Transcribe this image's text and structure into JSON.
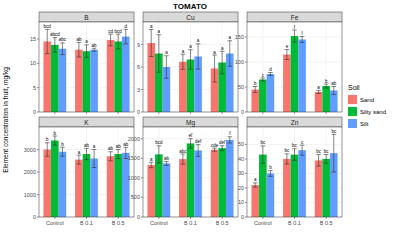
{
  "title": "TOMATO",
  "y_label": "Element concentration in fruit, mg/kg",
  "legend_title": "Soil",
  "soils": [
    {
      "name": "Sand",
      "color": "#F8766D"
    },
    {
      "name": "Silty sand",
      "color": "#00BA38"
    },
    {
      "name": "Silt",
      "color": "#619CFF"
    }
  ],
  "chart_data": [
    {
      "type": "bar",
      "title": "B",
      "categories": [
        "Control",
        "B 0.1",
        "B 0.5"
      ],
      "ylim": [
        0,
        18.5
      ],
      "yticks": [
        0,
        5,
        10,
        15
      ],
      "grid": true,
      "series": [
        {
          "values": [
            14.5,
            12.8,
            14.8
          ],
          "errors": [
            2.5,
            1.5,
            1.2
          ],
          "letters": [
            "bcd",
            "ab",
            "cd"
          ]
        },
        {
          "values": [
            13.8,
            12.5,
            14.5
          ],
          "errors": [
            1.5,
            1.3,
            1.5
          ],
          "letters": [
            "abcd",
            "a",
            "bcd"
          ]
        },
        {
          "values": [
            13.0,
            12.8,
            15.5
          ],
          "errors": [
            1.2,
            0.3,
            1.5
          ],
          "letters": [
            "abc",
            "ab",
            "d"
          ]
        }
      ]
    },
    {
      "type": "bar",
      "title": "Cu",
      "categories": [
        "Control",
        "B 0.1",
        "B 0.5"
      ],
      "ylim": [
        0,
        12
      ],
      "yticks": [
        0,
        3,
        6,
        9
      ],
      "grid": true,
      "series": [
        {
          "values": [
            9.2,
            6.7,
            5.8
          ],
          "errors": [
            1.8,
            1.0,
            1.8
          ],
          "letters": [
            "a",
            "a",
            "a"
          ]
        },
        {
          "values": [
            7.8,
            7.0,
            6.6
          ],
          "errors": [
            2.5,
            1.3,
            1.5
          ],
          "letters": [
            "a",
            "a",
            "a"
          ]
        },
        {
          "values": [
            6.0,
            7.4,
            7.8
          ],
          "errors": [
            1.5,
            1.7,
            1.7
          ],
          "letters": [
            "a",
            "a",
            "a"
          ]
        }
      ]
    },
    {
      "type": "bar",
      "title": "Fe",
      "categories": [
        "Control",
        "B 0.1",
        "B 0.5"
      ],
      "ylim": [
        0,
        180
      ],
      "yticks": [
        0,
        50,
        100,
        150
      ],
      "grid": true,
      "series": [
        {
          "values": [
            45,
            115,
            40
          ],
          "errors": [
            6,
            10,
            3
          ],
          "letters": [
            "b",
            "e",
            "a"
          ]
        },
        {
          "values": [
            65,
            152,
            52
          ],
          "errors": [
            3,
            12,
            4
          ],
          "letters": [
            "c",
            "f",
            "b"
          ]
        },
        {
          "values": [
            76,
            145,
            43
          ],
          "errors": [
            3,
            6,
            8
          ],
          "letters": [
            "d",
            "f",
            "ab"
          ]
        }
      ]
    },
    {
      "type": "bar",
      "title": "K",
      "categories": [
        "Control",
        "B 0.1",
        "B 0.5"
      ],
      "ylim": [
        0,
        4000
      ],
      "yticks": [
        0,
        1000,
        2000,
        3000
      ],
      "grid": true,
      "series": [
        {
          "values": [
            3000,
            2550,
            2700
          ],
          "errors": [
            300,
            200,
            200
          ],
          "letters": [
            "b",
            "a",
            "ab"
          ]
        },
        {
          "values": [
            3400,
            2800,
            2800
          ],
          "errors": [
            200,
            250,
            200
          ],
          "letters": [
            "b",
            "ab",
            "ab"
          ]
        },
        {
          "values": [
            2900,
            2600,
            2850
          ],
          "errors": [
            200,
            400,
            250
          ],
          "letters": [
            "b",
            "a",
            "ab"
          ]
        }
      ]
    },
    {
      "type": "bar",
      "title": "Mg",
      "categories": [
        "Control",
        "B 0.1",
        "B 0.5"
      ],
      "ylim": [
        0,
        2300
      ],
      "yticks": [
        0,
        500,
        1000,
        1500,
        2000
      ],
      "grid": true,
      "series": [
        {
          "values": [
            1330,
            1480,
            1720
          ],
          "errors": [
            70,
            130,
            40
          ],
          "letters": [
            "a",
            "abc",
            "cde"
          ]
        },
        {
          "values": [
            1600,
            1880,
            1760
          ],
          "errors": [
            220,
            120,
            60
          ],
          "letters": [
            "bcd",
            "ef",
            "def"
          ]
        },
        {
          "values": [
            1370,
            1700,
            1970
          ],
          "errors": [
            50,
            150,
            80
          ],
          "letters": [
            "ab",
            "def",
            "f"
          ]
        }
      ]
    },
    {
      "type": "bar",
      "title": "Zn",
      "categories": [
        "Control",
        "B 0.1",
        "B 0.5"
      ],
      "ylim": [
        0,
        62
      ],
      "yticks": [
        0,
        10,
        20,
        30,
        40,
        50
      ],
      "grid": true,
      "series": [
        {
          "values": [
            22,
            40,
            39
          ],
          "errors": [
            1.5,
            3.5,
            4
          ],
          "letters": [
            "a",
            "bc",
            "bc"
          ]
        },
        {
          "values": [
            43,
            43,
            40
          ],
          "errors": [
            6,
            4,
            3
          ],
          "letters": [
            "bc",
            "bc",
            "bc"
          ]
        },
        {
          "values": [
            30,
            46,
            44
          ],
          "errors": [
            2,
            3.5,
            13
          ],
          "letters": [
            "b",
            "c",
            "bc"
          ]
        }
      ]
    }
  ]
}
